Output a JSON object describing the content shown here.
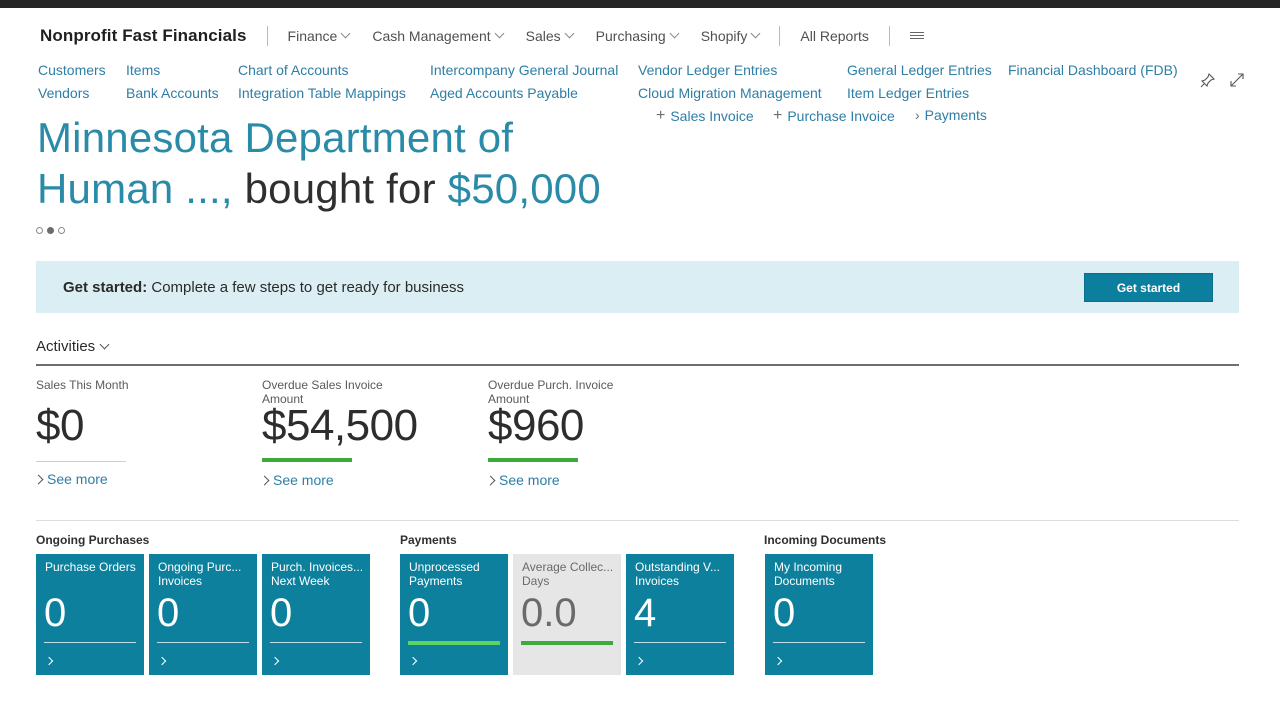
{
  "app": {
    "title": "Nonprofit Fast Financials"
  },
  "nav": {
    "menus": [
      "Finance",
      "Cash Management",
      "Sales",
      "Purchasing",
      "Shopify"
    ],
    "all_reports": "All Reports"
  },
  "links": {
    "col1": [
      "Customers",
      "Vendors"
    ],
    "col2": [
      "Items",
      "Bank Accounts"
    ],
    "col3": [
      "Chart of Accounts",
      "Integration Table Mappings"
    ],
    "col4": [
      "Intercompany General Journal",
      "Aged Accounts Payable"
    ],
    "col5": [
      "Vendor Ledger Entries",
      "Cloud Migration Management"
    ],
    "col6": [
      "General Ledger Entries",
      "Item Ledger Entries"
    ],
    "col7": [
      "Financial Dashboard (FDB)"
    ]
  },
  "actions": {
    "sales_invoice": "Sales Invoice",
    "purchase_invoice": "Purchase Invoice",
    "payments": "Payments"
  },
  "headline": {
    "line1": "Minnesota Department of",
    "line2_part1": "Human ...,",
    "line2_part2": "bought for",
    "line2_part3": "$50,000"
  },
  "carousel": {
    "count": 3,
    "active_index": 1
  },
  "banner": {
    "bold": "Get started:",
    "text": "Complete a few steps to get ready for business",
    "button": "Get started"
  },
  "activities": {
    "title": "Activities",
    "cues": [
      {
        "label": "Sales This Month",
        "value": "$0",
        "bar": "none",
        "see_more": "See more"
      },
      {
        "label": "Overdue Sales Invoice Amount",
        "value": "$54,500",
        "bar": "green",
        "see_more": "See more"
      },
      {
        "label": "Overdue Purch. Invoice Amount",
        "value": "$960",
        "bar": "green",
        "see_more": "See more"
      }
    ]
  },
  "groups": {
    "ongoing_purchases": {
      "title": "Ongoing Purchases",
      "tiles": [
        {
          "label": "Purchase Orders",
          "value": "0"
        },
        {
          "label": "Ongoing Purc... Invoices",
          "value": "0"
        },
        {
          "label": "Purch. Invoices... Next Week",
          "value": "0"
        }
      ]
    },
    "payments": {
      "title": "Payments",
      "tiles": [
        {
          "label": "Unprocessed Payments",
          "value": "0"
        },
        {
          "label": "Average Collec... Days",
          "value": "0.0"
        },
        {
          "label": "Outstanding V... Invoices",
          "value": "4"
        }
      ]
    },
    "incoming_documents": {
      "title": "Incoming Documents",
      "tiles": [
        {
          "label": "My Incoming Documents",
          "value": "0"
        }
      ]
    }
  },
  "colors": {
    "accent": "#0d809d",
    "link": "#2e7ea5",
    "headline": "#2a8ba9",
    "banner_bg": "#dbeef3",
    "good_bar": "#3cab3c",
    "good_bar_light": "#5fd35f"
  }
}
